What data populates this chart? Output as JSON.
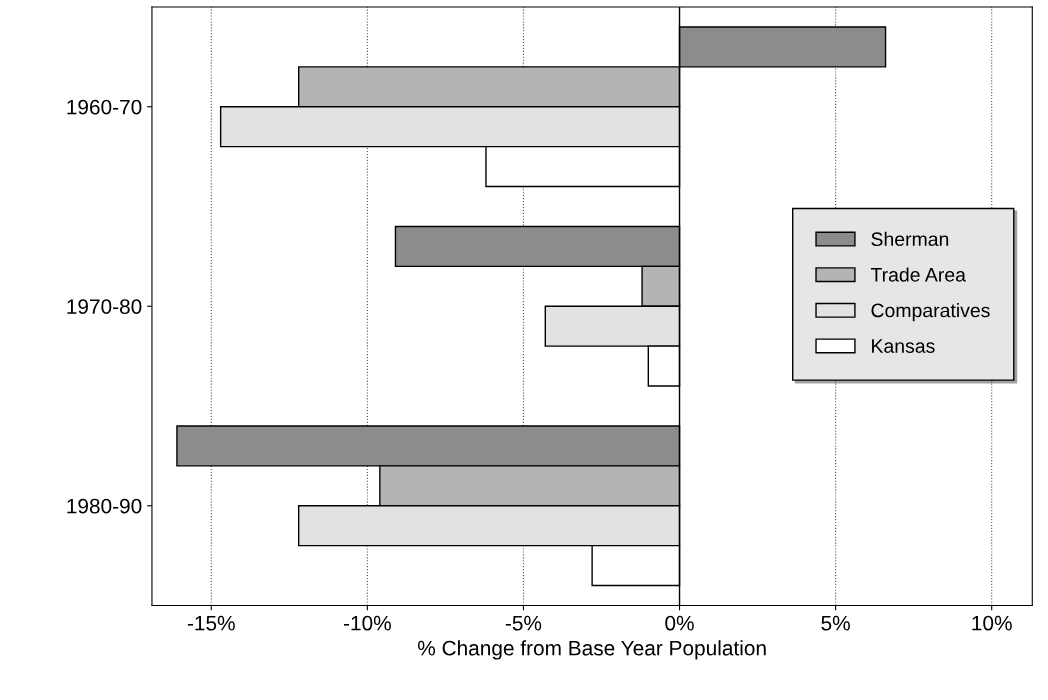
{
  "chart_data": {
    "type": "bar",
    "orientation": "horizontal",
    "xlabel": "% Change from Base Year Population",
    "categories": [
      "1960-70",
      "1970-80",
      "1980-90"
    ],
    "series": [
      {
        "name": "Sherman",
        "color": "#8c8c8c",
        "values": [
          6.6,
          -9.1,
          -16.1
        ]
      },
      {
        "name": "Trade Area",
        "color": "#b4b4b4",
        "values": [
          -12.2,
          -1.2,
          -9.6
        ]
      },
      {
        "name": "Comparatives",
        "color": "#e2e2e2",
        "values": [
          -14.7,
          -4.3,
          -12.2
        ]
      },
      {
        "name": "Kansas",
        "color": "#ffffff",
        "values": [
          -6.2,
          -1.0,
          -2.8
        ]
      }
    ],
    "xlim": [
      -16.9,
      11.3
    ],
    "xticks": [
      {
        "value": -15,
        "label": "-15%"
      },
      {
        "value": -10,
        "label": "-10%"
      },
      {
        "value": -5,
        "label": "-5%"
      },
      {
        "value": 0,
        "label": "0%"
      },
      {
        "value": 5,
        "label": "5%"
      },
      {
        "value": 10,
        "label": "10%"
      }
    ],
    "grid": "x",
    "legend": "right"
  }
}
